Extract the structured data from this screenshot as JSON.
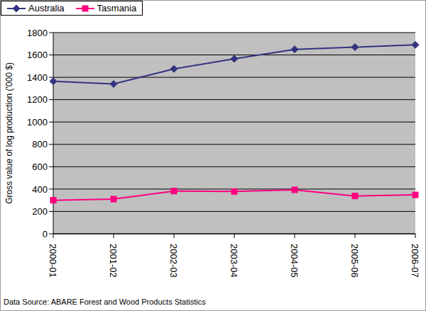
{
  "chart_data": {
    "type": "line",
    "y_label": "Gross value of log production ('000 $)",
    "categories": [
      "2000-01",
      "2001-02",
      "2002-03",
      "2003-04",
      "2004-05",
      "2005-06",
      "2006-07"
    ],
    "series": [
      {
        "name": "Australia",
        "color": "#333380",
        "marker": "diamond",
        "values": [
          1365,
          1340,
          1475,
          1565,
          1650,
          1670,
          1690
        ]
      },
      {
        "name": "Tasmania",
        "color": "#FF0080",
        "marker": "square",
        "values": [
          300,
          310,
          382,
          378,
          393,
          338,
          348
        ]
      }
    ],
    "ylim": [
      0,
      1800
    ],
    "yticks": [
      0,
      200,
      400,
      600,
      800,
      1000,
      1200,
      1400,
      1600,
      1800
    ],
    "grid": true,
    "legend": "top",
    "annotations": [
      "Data Source: ABARE Forest and Wood Products Statistics"
    ]
  }
}
